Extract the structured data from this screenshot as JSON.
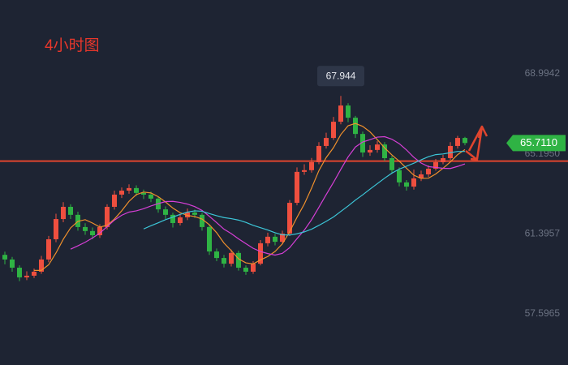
{
  "chart_data": {
    "type": "candlestick",
    "title": "4小时图",
    "ylim": [
      55.17,
      72.5
    ],
    "yticks": [
      68.9942,
      {
        "value": 65.195,
        "label": "65.1950"
      },
      61.3957,
      57.5965
    ],
    "up_color": "#ef4f3f",
    "down_color": "#2fb344",
    "open": [
      60.4,
      60.18,
      59.79,
      59.33,
      59.41,
      59.6,
      60.18,
      61.14,
      62.1,
      62.68,
      62.3,
      61.72,
      61.53,
      61.33,
      61.72,
      62.68,
      63.26,
      63.45,
      63.57,
      63.34,
      63.26,
      63.07,
      62.56,
      62.3,
      61.91,
      62.18,
      62.41,
      62.3,
      61.72,
      60.56,
      60.25,
      59.98,
      60.49,
      59.79,
      59.6,
      59.98,
      60.95,
      61.26,
      61.02,
      61.41,
      62.87,
      64.34,
      64.42,
      64.8,
      65.57,
      65.95,
      66.72,
      67.49,
      66.91,
      66.14,
      65.26,
      65.38,
      65.64,
      64.99,
      64.42,
      63.84,
      63.64,
      64.03,
      64.22,
      64.49,
      64.8,
      64.99,
      65.57,
      65.95
    ],
    "high": [
      60.55,
      60.3,
      59.9,
      59.62,
      59.75,
      60.35,
      61.3,
      62.35,
      62.9,
      62.8,
      62.45,
      61.9,
      61.7,
      61.85,
      62.8,
      63.45,
      63.6,
      63.75,
      63.7,
      63.5,
      63.4,
      63.15,
      62.7,
      62.4,
      62.35,
      62.6,
      62.55,
      62.4,
      61.85,
      60.7,
      60.4,
      60.65,
      60.6,
      59.9,
      60.1,
      61.1,
      61.45,
      61.4,
      61.55,
      63.0,
      64.55,
      64.7,
      65.0,
      65.75,
      66.2,
      66.95,
      67.944,
      67.6,
      67.0,
      66.25,
      65.6,
      65.8,
      65.75,
      65.1,
      64.55,
      63.95,
      64.45,
      64.4,
      64.65,
      64.95,
      65.15,
      65.75,
      66.05,
      66.0
    ],
    "low": [
      59.95,
      59.6,
      59.15,
      59.2,
      59.3,
      59.5,
      60.05,
      61.0,
      61.95,
      62.1,
      61.55,
      61.35,
      61.15,
      61.2,
      61.6,
      62.55,
      63.1,
      63.3,
      63.2,
      63.05,
      62.9,
      62.4,
      62.1,
      61.7,
      61.8,
      62.05,
      62.15,
      61.55,
      60.4,
      60.1,
      59.8,
      59.85,
      59.65,
      59.45,
      59.5,
      59.9,
      60.8,
      60.85,
      60.9,
      61.3,
      62.75,
      64.2,
      64.3,
      64.7,
      65.45,
      65.85,
      66.6,
      66.7,
      65.95,
      65.05,
      65.1,
      65.25,
      64.85,
      64.25,
      63.65,
      63.45,
      63.5,
      63.9,
      64.1,
      64.4,
      64.7,
      64.9,
      65.45,
      65.6
    ],
    "close": [
      60.18,
      59.79,
      59.33,
      59.41,
      59.6,
      60.18,
      61.14,
      62.1,
      62.68,
      62.3,
      61.72,
      61.53,
      61.33,
      61.72,
      62.68,
      63.26,
      63.45,
      63.57,
      63.34,
      63.26,
      63.07,
      62.56,
      62.3,
      61.91,
      62.18,
      62.41,
      62.3,
      61.72,
      60.56,
      60.25,
      59.98,
      60.49,
      59.79,
      59.6,
      59.98,
      60.95,
      61.26,
      61.02,
      61.41,
      62.87,
      64.34,
      64.42,
      64.8,
      65.57,
      65.95,
      66.72,
      67.49,
      66.91,
      66.14,
      65.26,
      65.38,
      65.64,
      64.99,
      64.42,
      63.84,
      63.64,
      64.03,
      64.22,
      64.49,
      64.8,
      64.99,
      65.57,
      65.95,
      65.71
    ],
    "lines": [
      {
        "color": "#f0902c",
        "values": [
          null,
          null,
          null,
          null,
          59.66,
          59.66,
          59.93,
          60.49,
          61.14,
          61.68,
          61.99,
          62.07,
          61.91,
          61.72,
          61.8,
          62.1,
          62.49,
          62.94,
          63.26,
          63.38,
          63.34,
          63.16,
          62.91,
          62.62,
          62.4,
          62.27,
          62.22,
          62.1,
          61.83,
          61.45,
          60.96,
          60.6,
          60.21,
          60.02,
          59.97,
          60.16,
          60.32,
          60.56,
          60.92,
          61.5,
          62.18,
          62.81,
          63.57,
          64.4,
          65.02,
          65.49,
          66.11,
          66.53,
          66.64,
          66.5,
          66.24,
          65.87,
          65.48,
          65.14,
          64.85,
          64.51,
          64.18,
          64.03,
          64.04,
          64.24,
          64.51,
          64.81,
          65.16,
          65.4
        ]
      },
      {
        "color": "#d63fd6",
        "values": [
          null,
          null,
          null,
          null,
          null,
          null,
          null,
          null,
          null,
          60.67,
          60.83,
          61.0,
          61.2,
          61.43,
          61.74,
          62.05,
          62.28,
          62.43,
          62.49,
          62.59,
          62.72,
          62.83,
          62.93,
          62.94,
          62.89,
          62.81,
          62.69,
          62.51,
          62.23,
          61.93,
          61.62,
          61.41,
          61.16,
          60.93,
          60.71,
          60.56,
          60.46,
          60.39,
          60.47,
          60.74,
          61.17,
          61.57,
          62.07,
          62.66,
          63.26,
          63.84,
          64.46,
          65.05,
          65.52,
          65.76,
          65.87,
          65.99,
          66.01,
          65.89,
          65.68,
          65.38,
          65.03,
          64.76,
          64.59,
          64.55,
          64.51,
          64.5,
          64.6,
          64.72
        ]
      },
      {
        "color": "#3cc6d8",
        "values": [
          null,
          null,
          null,
          null,
          null,
          null,
          null,
          null,
          null,
          null,
          null,
          null,
          null,
          null,
          null,
          null,
          null,
          null,
          null,
          61.63,
          61.78,
          61.92,
          62.07,
          62.19,
          62.32,
          62.43,
          62.49,
          62.47,
          62.36,
          62.26,
          62.17,
          62.12,
          62.05,
          61.94,
          61.8,
          61.69,
          61.58,
          61.45,
          61.35,
          61.34,
          61.4,
          61.49,
          61.62,
          61.8,
          61.99,
          62.2,
          62.46,
          62.72,
          63.0,
          63.25,
          63.52,
          63.78,
          64.04,
          64.28,
          64.47,
          64.61,
          64.75,
          64.91,
          65.06,
          65.16,
          65.19,
          65.25,
          65.31,
          65.31
        ]
      }
    ],
    "level": 64.85,
    "level_color": "#e0452e",
    "max_label": "67.944",
    "last_price_label": "65.7110",
    "last_price_color": "#2fb344"
  }
}
